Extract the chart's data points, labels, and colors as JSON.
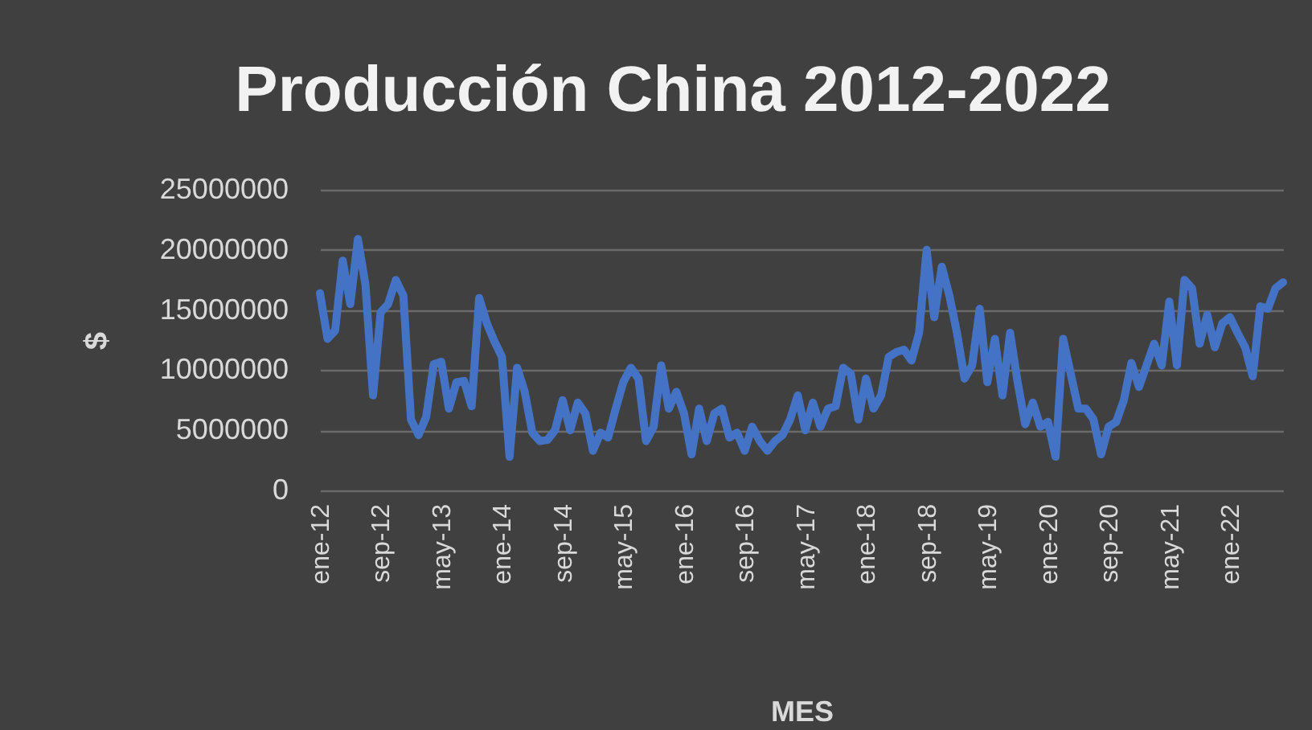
{
  "chart_data": {
    "type": "line",
    "title": "Producción China 2012-2022",
    "xlabel": "MES",
    "ylabel": "$",
    "categories": [
      "ene-12",
      null,
      null,
      null,
      null,
      null,
      null,
      null,
      "sep-12",
      null,
      null,
      null,
      null,
      null,
      null,
      null,
      "may-13",
      null,
      null,
      null,
      null,
      null,
      null,
      null,
      "ene-14",
      null,
      null,
      null,
      null,
      null,
      null,
      null,
      "sep-14",
      null,
      null,
      null,
      null,
      null,
      null,
      null,
      "may-15",
      null,
      null,
      null,
      null,
      null,
      null,
      null,
      "ene-16",
      null,
      null,
      null,
      null,
      null,
      null,
      null,
      "sep-16",
      null,
      null,
      null,
      null,
      null,
      null,
      null,
      "may-17",
      null,
      null,
      null,
      null,
      null,
      null,
      null,
      "ene-18",
      null,
      null,
      null,
      null,
      null,
      null,
      null,
      "sep-18",
      null,
      null,
      null,
      null,
      null,
      null,
      null,
      "may-19",
      null,
      null,
      null,
      null,
      null,
      null,
      null,
      "ene-20",
      null,
      null,
      null,
      null,
      null,
      null,
      null,
      "sep-20",
      null,
      null,
      null,
      null,
      null,
      null,
      null,
      "may-21",
      null,
      null,
      null,
      null,
      null,
      null,
      null,
      "ene-22",
      null,
      null,
      null,
      null,
      null,
      null,
      null
    ],
    "series": [
      {
        "color": "#4472c4",
        "values": [
          16400000,
          12600000,
          13300000,
          19100000,
          15500000,
          20900000,
          17100000,
          7900000,
          14800000,
          15500000,
          17500000,
          16200000,
          5900000,
          4600000,
          6100000,
          10500000,
          10700000,
          6800000,
          9000000,
          9100000,
          7000000,
          16000000,
          13900000,
          12400000,
          11100000,
          2800000,
          10200000,
          8200000,
          4800000,
          4100000,
          4200000,
          5000000,
          7500000,
          5000000,
          7300000,
          6400000,
          3300000,
          4800000,
          4400000,
          6800000,
          9000000,
          10200000,
          9300000,
          4100000,
          5300000,
          10400000,
          6800000,
          8200000,
          6400000,
          3000000,
          6800000,
          4100000,
          6400000,
          6800000,
          4400000,
          4800000,
          3300000,
          5300000,
          4100000,
          3300000,
          4100000,
          4600000,
          5900000,
          7900000,
          5000000,
          7300000,
          5300000,
          6800000,
          7000000,
          10200000,
          9700000,
          5900000,
          9300000,
          6800000,
          7900000,
          11100000,
          11500000,
          11700000,
          10800000,
          13100000,
          20000000,
          14400000,
          18600000,
          16200000,
          13100000,
          9300000,
          10400000,
          15100000,
          9000000,
          12600000,
          7900000,
          13100000,
          9000000,
          5500000,
          7300000,
          5300000,
          5700000,
          2800000,
          12600000,
          9700000,
          6800000,
          6800000,
          5900000,
          3000000,
          5300000,
          5700000,
          7500000,
          10600000,
          8600000,
          10400000,
          12200000,
          10400000,
          15700000,
          10400000,
          17500000,
          16800000,
          12200000,
          14600000,
          11900000,
          13900000,
          14400000,
          13100000,
          11900000,
          9500000,
          15300000,
          15100000,
          16800000,
          17300000
        ]
      }
    ],
    "ylim": [
      0,
      25000000
    ],
    "yticks": [
      0,
      5000000,
      10000000,
      15000000,
      20000000,
      25000000
    ],
    "grid": "y"
  }
}
